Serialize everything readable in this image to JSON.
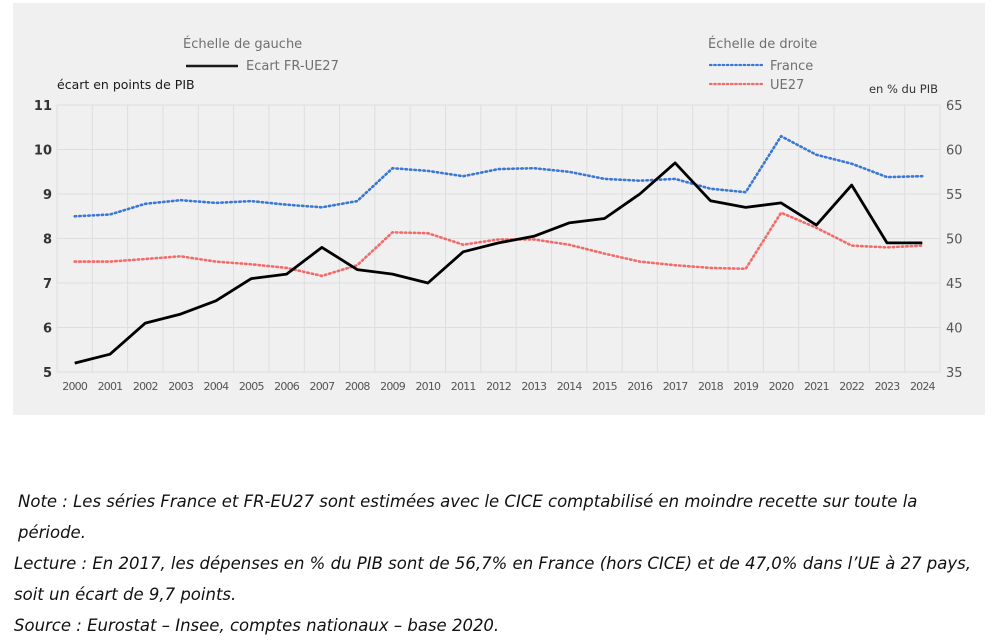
{
  "chart_data": {
    "type": "line",
    "x": [
      2000,
      2001,
      2002,
      2003,
      2004,
      2005,
      2006,
      2007,
      2008,
      2009,
      2010,
      2011,
      2012,
      2013,
      2014,
      2015,
      2016,
      2017,
      2018,
      2019,
      2020,
      2021,
      2022,
      2023,
      2024
    ],
    "x_tick_labels": [
      "2000",
      "2001",
      "2002",
      "2003",
      "2004",
      "2005",
      "2006",
      "2007",
      "2008",
      "2009",
      "2010",
      "2011",
      "2012",
      "2013",
      "2014",
      "2015",
      "2016",
      "2017",
      "2018",
      "2019",
      "2020",
      "2021",
      "2022",
      "2023",
      "2024"
    ],
    "left_axis": {
      "label": "écart en points de PIB",
      "ylim": [
        5,
        11
      ],
      "ticks": [
        "5",
        "6",
        "7",
        "8",
        "9",
        "10",
        "11"
      ]
    },
    "right_axis": {
      "label": "en % du PIB",
      "ylim": [
        35,
        65
      ],
      "ticks": [
        "35",
        "40",
        "45",
        "50",
        "55",
        "60",
        "65"
      ]
    },
    "legend_groups": [
      {
        "title": "Échelle de gauche",
        "placement": "top-left",
        "entries": [
          "Ecart FR-UE27"
        ]
      },
      {
        "title": "Échelle de droite",
        "placement": "top-right",
        "entries": [
          "France",
          "UE27"
        ]
      }
    ],
    "series": [
      {
        "name": "Ecart FR-UE27",
        "axis": "left",
        "style": "solid",
        "color": "#000000",
        "values": [
          5.2,
          5.4,
          6.1,
          6.3,
          6.6,
          7.1,
          7.2,
          7.8,
          7.3,
          7.2,
          7.0,
          7.7,
          7.9,
          8.05,
          8.35,
          8.45,
          9.0,
          9.7,
          8.85,
          8.7,
          8.8,
          8.3,
          9.2,
          7.9,
          7.9
        ]
      },
      {
        "name": "France",
        "axis": "right",
        "style": "dotted",
        "color": "#3a78d4",
        "values": [
          52.5,
          52.7,
          53.9,
          54.3,
          54.0,
          54.2,
          53.8,
          53.5,
          54.2,
          57.9,
          57.6,
          57.0,
          57.8,
          57.9,
          57.5,
          56.7,
          56.5,
          56.7,
          55.6,
          55.2,
          61.5,
          59.4,
          58.4,
          56.9,
          57.0
        ]
      },
      {
        "name": "UE27",
        "axis": "right",
        "style": "dotted",
        "color": "#f26b6b",
        "values": [
          47.4,
          47.4,
          47.7,
          48.0,
          47.4,
          47.1,
          46.7,
          45.8,
          47.0,
          50.7,
          50.6,
          49.3,
          49.9,
          49.9,
          49.3,
          48.3,
          47.4,
          47.0,
          46.7,
          46.6,
          52.9,
          51.2,
          49.2,
          49.0,
          49.2
        ]
      }
    ],
    "grid": true,
    "title": ""
  },
  "notes": {
    "note": "Note : Les séries France et FR-EU27 sont estimées avec le CICE comptabilisé en moindre recette sur toute la période.",
    "lecture": "Lecture : En 2017, les dépenses en % du PIB sont de 56,7% en France (hors CICE) et de 47,0% dans l’UE à 27 pays, soit un écart de 9,7 points.",
    "source": "Source : Eurostat – Insee, comptes nationaux – base 2020."
  }
}
